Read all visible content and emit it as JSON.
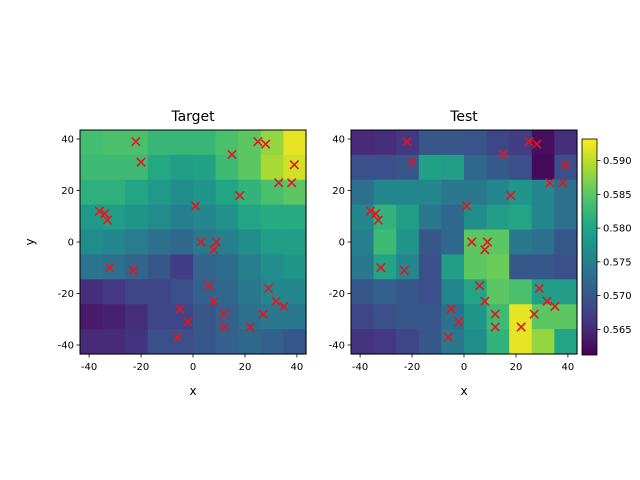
{
  "chart_data": [
    {
      "type": "heatmap",
      "title": "Target",
      "xlabel": "x",
      "ylabel": "y",
      "xlim": [
        -43.5,
        43.5
      ],
      "ylim": [
        -43.5,
        43.5
      ],
      "xticks": [
        -40,
        -20,
        0,
        20,
        40
      ],
      "yticks": [
        -40,
        -20,
        0,
        20,
        40
      ],
      "grid_cols": 10,
      "grid_rows": 9,
      "values_top_to_bottom": [
        [
          0.5835,
          0.584,
          0.584,
          0.5825,
          0.5825,
          0.5825,
          0.584,
          0.585,
          0.588,
          0.592
        ],
        [
          0.583,
          0.583,
          0.583,
          0.5805,
          0.579,
          0.5795,
          0.583,
          0.585,
          0.589,
          0.591
        ],
        [
          0.5815,
          0.5815,
          0.58,
          0.5785,
          0.577,
          0.578,
          0.58,
          0.582,
          0.584,
          0.585
        ],
        [
          0.5785,
          0.579,
          0.578,
          0.5765,
          0.575,
          0.576,
          0.5775,
          0.58,
          0.581,
          0.581
        ],
        [
          0.5765,
          0.576,
          0.5745,
          0.573,
          0.572,
          0.574,
          0.575,
          0.577,
          0.579,
          0.579
        ],
        [
          0.5735,
          0.573,
          0.5715,
          0.57,
          0.567,
          0.5715,
          0.5725,
          0.575,
          0.577,
          0.578
        ],
        [
          0.5655,
          0.5665,
          0.568,
          0.568,
          0.569,
          0.571,
          0.572,
          0.574,
          0.576,
          0.576
        ],
        [
          0.5635,
          0.564,
          0.5655,
          0.568,
          0.568,
          0.57,
          0.571,
          0.573,
          0.574,
          0.574
        ],
        [
          0.565,
          0.565,
          0.566,
          0.569,
          0.569,
          0.57,
          0.571,
          0.572,
          0.571,
          0.57
        ]
      ]
    },
    {
      "type": "heatmap",
      "title": "Test",
      "xlabel": "x",
      "ylabel": "",
      "xlim": [
        -43.5,
        43.5
      ],
      "ylim": [
        -43.5,
        43.5
      ],
      "xticks": [
        -40,
        -20,
        0,
        20,
        40
      ],
      "yticks": [
        -40,
        -20,
        0,
        20,
        40
      ],
      "grid_cols": 10,
      "grid_rows": 9,
      "values_top_to_bottom": [
        [
          0.565,
          0.5655,
          0.5665,
          0.57,
          0.57,
          0.5695,
          0.568,
          0.567,
          0.5625,
          0.5655
        ],
        [
          0.569,
          0.569,
          0.57,
          0.5795,
          0.579,
          0.572,
          0.5705,
          0.569,
          0.562,
          0.569
        ],
        [
          0.573,
          0.576,
          0.576,
          0.576,
          0.574,
          0.574,
          0.576,
          0.578,
          0.576,
          0.573
        ],
        [
          0.576,
          0.582,
          0.579,
          0.574,
          0.572,
          0.577,
          0.579,
          0.58,
          0.576,
          0.573
        ],
        [
          0.575,
          0.583,
          0.578,
          0.57,
          0.572,
          0.585,
          0.585,
          0.574,
          0.573,
          0.57
        ],
        [
          0.574,
          0.58,
          0.576,
          0.569,
          0.579,
          0.585,
          0.586,
          0.57,
          0.57,
          0.569
        ],
        [
          0.57,
          0.571,
          0.57,
          0.569,
          0.576,
          0.58,
          0.585,
          0.584,
          0.579,
          0.579
        ],
        [
          0.568,
          0.569,
          0.57,
          0.57,
          0.573,
          0.578,
          0.583,
          0.592,
          0.585,
          0.585
        ],
        [
          0.566,
          0.5665,
          0.568,
          0.57,
          0.574,
          0.577,
          0.582,
          0.592,
          0.588,
          0.58
        ]
      ]
    }
  ],
  "markers": {
    "style": "x",
    "color": "#e8141c",
    "points": [
      [
        -22,
        39
      ],
      [
        25,
        39
      ],
      [
        28,
        38
      ],
      [
        -20,
        31
      ],
      [
        15,
        34
      ],
      [
        39,
        30
      ],
      [
        -36,
        12
      ],
      [
        -34,
        11
      ],
      [
        -33,
        8.5
      ],
      [
        1,
        14
      ],
      [
        18,
        18
      ],
      [
        33,
        23
      ],
      [
        38,
        23
      ],
      [
        3,
        0
      ],
      [
        9,
        0
      ],
      [
        8,
        -3
      ],
      [
        -32,
        -10
      ],
      [
        -23,
        -11
      ],
      [
        6,
        -17
      ],
      [
        29,
        -18
      ],
      [
        8,
        -23
      ],
      [
        -5,
        -26
      ],
      [
        32,
        -23
      ],
      [
        35,
        -25
      ],
      [
        12,
        -28
      ],
      [
        27,
        -28
      ],
      [
        -2,
        -31
      ],
      [
        12,
        -33
      ],
      [
        22,
        -33
      ],
      [
        -6,
        -37
      ]
    ]
  },
  "colorbar": {
    "min": 0.5612,
    "max": 0.5932,
    "ticks": [
      0.565,
      0.57,
      0.575,
      0.58,
      0.585,
      0.59
    ],
    "tick_labels": [
      "0.565",
      "0.570",
      "0.575",
      "0.580",
      "0.585",
      "0.590"
    ],
    "colormap": "viridis"
  }
}
